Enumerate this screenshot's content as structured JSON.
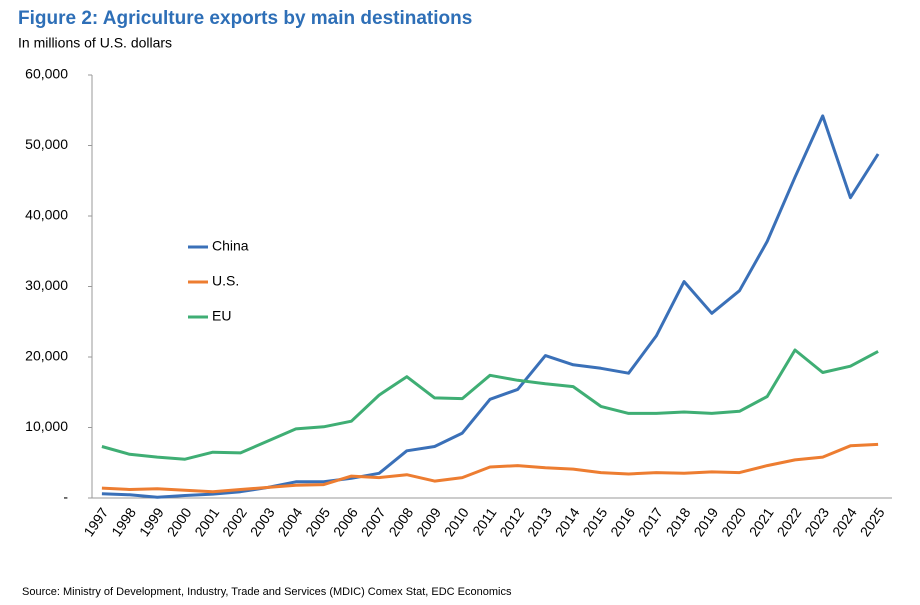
{
  "chart_data": {
    "type": "line",
    "title": "Figure 2: Agriculture exports by main destinations",
    "subtitle": "In millions of U.S. dollars",
    "source": "Source: Ministry of Development, Industry, Trade and Services (MDIC) Comex Stat, EDC Economics",
    "categories": [
      "1997",
      "1998",
      "1999",
      "2000",
      "2001",
      "2002",
      "2003",
      "2004",
      "2005",
      "2006",
      "2007",
      "2008",
      "2009",
      "2010",
      "2011",
      "2012",
      "2013",
      "2014",
      "2015",
      "2016",
      "2017",
      "2018",
      "2019",
      "2020",
      "2021",
      "2022",
      "2023",
      "2024",
      "2025"
    ],
    "series": [
      {
        "name": "China",
        "color": "#3a70b8",
        "values": [
          600,
          450,
          100,
          350,
          550,
          900,
          1500,
          2300,
          2300,
          2800,
          3500,
          6700,
          7300,
          9200,
          14000,
          15400,
          20200,
          18900,
          18400,
          17700,
          23000,
          30700,
          26200,
          29400,
          36400,
          45500,
          54200,
          42600,
          48800
        ]
      },
      {
        "name": "U.S.",
        "color": "#ed7d31",
        "values": [
          1400,
          1200,
          1300,
          1100,
          900,
          1200,
          1500,
          1800,
          1900,
          3100,
          2900,
          3300,
          2400,
          2900,
          4400,
          4600,
          4300,
          4100,
          3600,
          3400,
          3600,
          3500,
          3700,
          3600,
          4600,
          5400,
          5800,
          7400,
          7600
        ]
      },
      {
        "name": "EU",
        "color": "#3fae74",
        "values": [
          7300,
          6200,
          5800,
          5500,
          6500,
          6400,
          8100,
          9800,
          10100,
          10900,
          14600,
          17200,
          14200,
          14100,
          17400,
          16700,
          16200,
          15800,
          13000,
          12000,
          12000,
          12200,
          12000,
          12300,
          14400,
          21000,
          17800,
          18700,
          20800
        ]
      }
    ],
    "ylim": [
      0,
      60000
    ],
    "yticks": [
      {
        "value": 0,
        "label": "-"
      },
      {
        "value": 10000,
        "label": "10,000"
      },
      {
        "value": 20000,
        "label": "20,000"
      },
      {
        "value": 30000,
        "label": "30,000"
      },
      {
        "value": 40000,
        "label": "40,000"
      },
      {
        "value": 50000,
        "label": "50,000"
      },
      {
        "value": 60000,
        "label": "60,000"
      }
    ],
    "grid": false,
    "legend": "left"
  }
}
